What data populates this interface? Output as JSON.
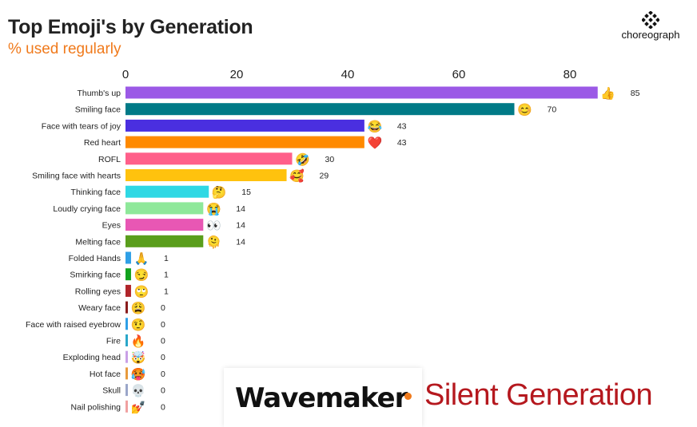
{
  "header": {
    "title": "Top Emoji's by Generation",
    "subtitle": "% used regularly"
  },
  "brand": {
    "name": "choreograph"
  },
  "footer": {
    "agency": "Wavemaker",
    "generation": "Silent Generation"
  },
  "chart_data": {
    "type": "bar",
    "orientation": "horizontal",
    "title": "Top Emoji's by Generation",
    "subtitle": "% used regularly",
    "xlim": [
      0,
      85
    ],
    "xticks": [
      0,
      20,
      40,
      60,
      80
    ],
    "x_axis_position": "top",
    "grid": false,
    "categories": [
      "Thumb's up",
      "Smiling face",
      "Face with tears of joy",
      "Red heart",
      "ROFL",
      "Smiling face with hearts",
      "Thinking face",
      "Loudly crying face",
      "Eyes",
      "Melting face",
      "Folded Hands",
      "Smirking face",
      "Rolling eyes",
      "Weary face",
      "Face with raised eyebrow",
      "Fire",
      "Exploding head",
      "Hot face",
      "Skull",
      "Nail polishing"
    ],
    "values": [
      85,
      70,
      43,
      43,
      30,
      29,
      15,
      14,
      14,
      14,
      1,
      1,
      1,
      0,
      0,
      0,
      0,
      0,
      0,
      0
    ],
    "emojis": [
      "👍",
      "😊",
      "😂",
      "❤️",
      "🤣",
      "🥰",
      "🤔",
      "😭",
      "👀",
      "🫠",
      "🙏",
      "😏",
      "🙄",
      "😩",
      "🤨",
      "🔥",
      "🤯",
      "🥵",
      "💀",
      "💅"
    ],
    "colors": [
      "#9b59e6",
      "#007a87",
      "#4a2fe0",
      "#ff8a00",
      "#ff5f8a",
      "#ffc20e",
      "#2fd8e4",
      "#8ee89a",
      "#e857b4",
      "#5a9e1c",
      "#2e9fe6",
      "#12a21e",
      "#b0252a",
      "#8a1c1c",
      "#2e9fe6",
      "#2aa7c9",
      "#c9a0e6",
      "#e89a3c",
      "#9aa6c9",
      "#f0a0a0"
    ]
  }
}
